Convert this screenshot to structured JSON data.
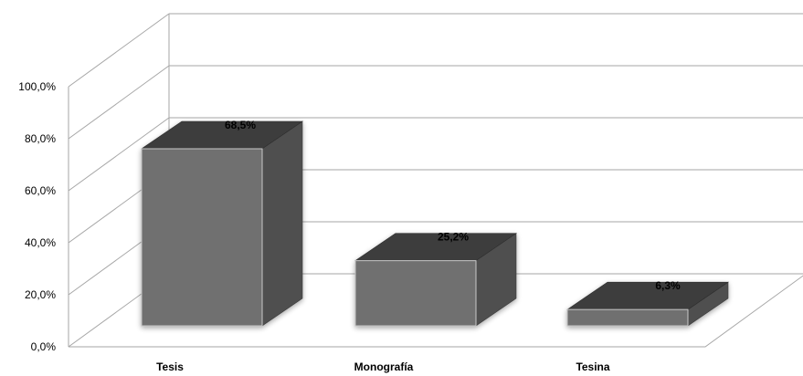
{
  "chart_data": {
    "type": "bar",
    "style": "3d-column",
    "categories": [
      "Tesis",
      "Monografía",
      "Tesina"
    ],
    "values": [
      68.5,
      25.2,
      6.3
    ],
    "data_labels": [
      "68,5%",
      "25,2%",
      "6,3%"
    ],
    "y_ticks": [
      "0,0%",
      "20,0%",
      "40,0%",
      "60,0%",
      "80,0%",
      "100,0%"
    ],
    "ylim": [
      0,
      100
    ],
    "title": "",
    "xlabel": "",
    "ylabel": "",
    "grid": true,
    "legend": "none",
    "colors": {
      "bar_front": "#6f6f6f",
      "bar_top": "#3d3d3d",
      "bar_side": "#4f4f4f",
      "gridline": "#a6a6a6"
    }
  }
}
